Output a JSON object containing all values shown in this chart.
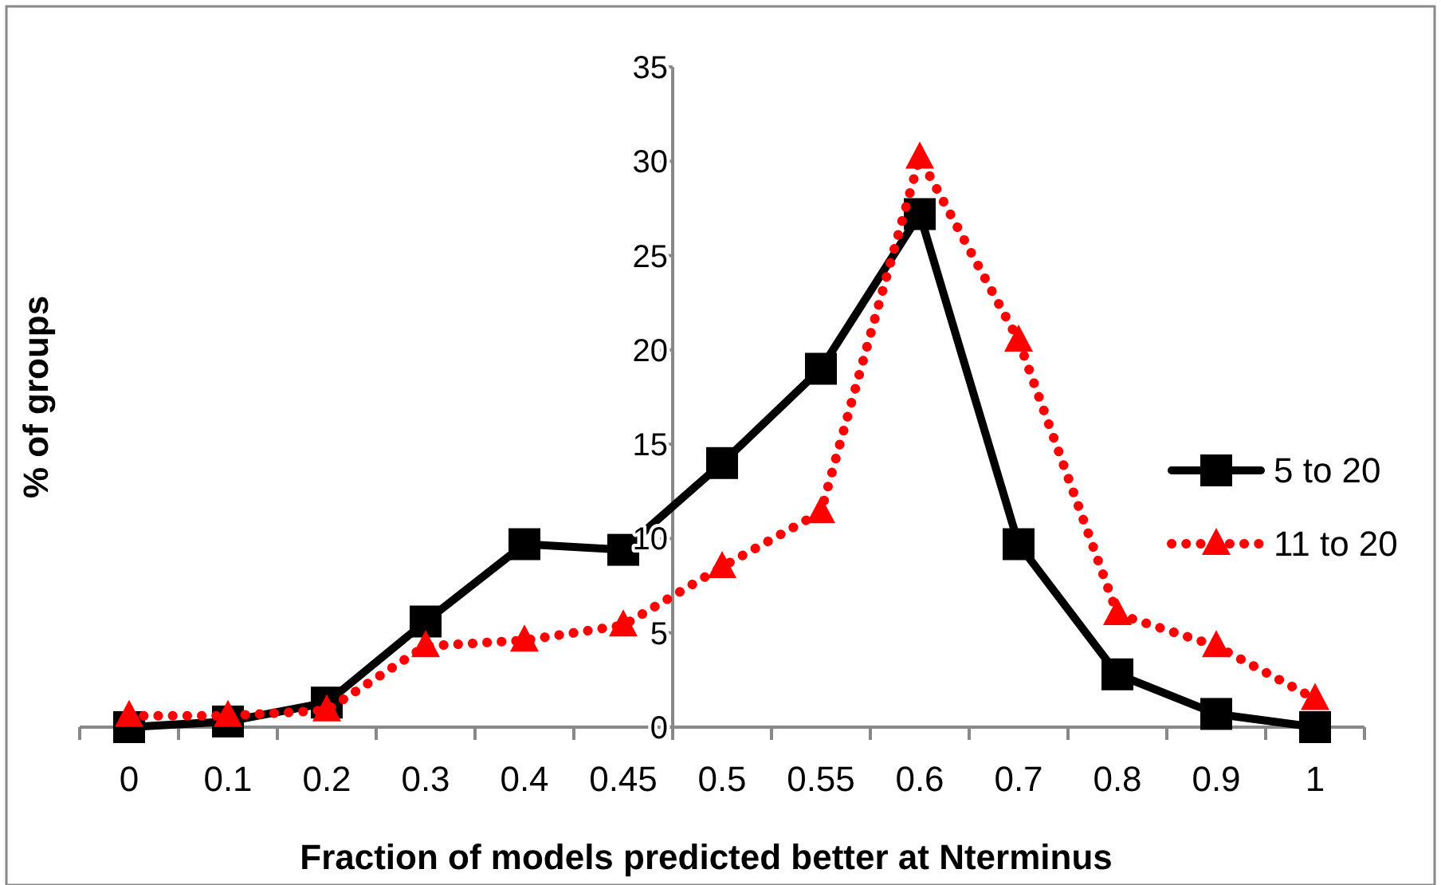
{
  "chart_data": {
    "type": "line",
    "xlabel": "Fraction of models predicted better at Nterminus",
    "ylabel": "% of groups",
    "categories": [
      "0",
      "0.1",
      "0.2",
      "0.3",
      "0.4",
      "0.45",
      "0.5",
      "0.55",
      "0.6",
      "0.7",
      "0.8",
      "0.9",
      "1"
    ],
    "series": [
      {
        "name": "5 to 20",
        "color": "#000000",
        "marker": "square",
        "line_style": "solid",
        "values": [
          0,
          0.3,
          1.3,
          5.6,
          9.7,
          9.4,
          14,
          19,
          27.2,
          9.7,
          2.8,
          0.7,
          0
        ]
      },
      {
        "name": "11 to 20",
        "color": "#ff0000",
        "marker": "triangle",
        "line_style": "dotted",
        "values": [
          0.6,
          0.6,
          0.9,
          4.3,
          4.6,
          5.4,
          8.5,
          11.4,
          30.2,
          20.5,
          6,
          4.3,
          1.5
        ]
      }
    ],
    "ylim": [
      0,
      35
    ],
    "yticks": [
      0,
      5,
      10,
      15,
      20,
      25,
      30,
      35
    ],
    "grid": false,
    "legend": "right"
  }
}
